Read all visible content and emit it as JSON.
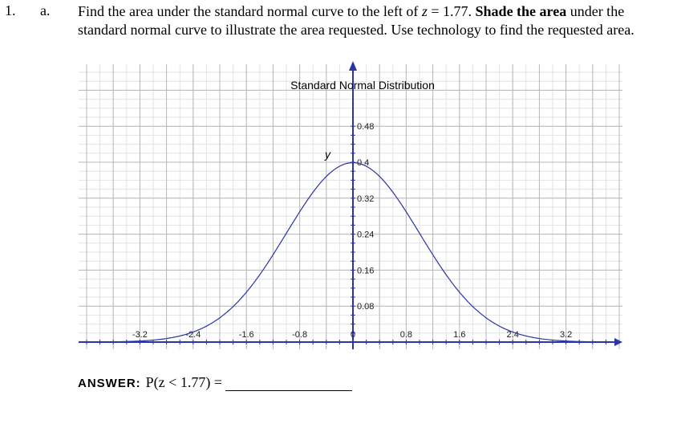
{
  "question": {
    "number": "1.",
    "part": "a.",
    "text_before_z": "Find the area under the standard normal curve to the left of ",
    "z_var": "z",
    "text_after_z": " = 1.77. ",
    "bold_text": "Shade the area",
    "text_rest": " under the standard normal curve to illustrate the area requested. Use technology to find the requested area."
  },
  "answer": {
    "label": "ANSWER:",
    "expression": "P(z < 1.77) ="
  },
  "chart_data": {
    "type": "line",
    "title": "Standard Normal Distribution",
    "ylabel": "y",
    "xlabel": "",
    "function": "standard normal pdf",
    "mean": 0,
    "sd": 1,
    "xlim": [
      -4.0,
      4.0
    ],
    "ylim": [
      0,
      0.5
    ],
    "x_ticks": [
      -3.2,
      -2.4,
      -1.6,
      -0.8,
      0,
      0.8,
      1.6,
      2.4,
      3.2
    ],
    "x_tick_labels": [
      "-3.2",
      "-2.4",
      "-1.6",
      "-0.8",
      "0",
      "0.8",
      "1.6",
      "2.4",
      "3.2"
    ],
    "y_ticks": [
      0.08,
      0.16,
      0.24,
      0.32,
      0.4,
      0.48
    ],
    "y_tick_labels": [
      "0.08",
      "0.16",
      "0.24",
      "0.32",
      "0.4",
      "0.48"
    ],
    "series": [
      {
        "x": [
          -3.6,
          -3.2,
          -2.8,
          -2.4,
          -2.0,
          -1.6,
          -1.2,
          -0.8,
          -0.4,
          0,
          0.4,
          0.8,
          1.2,
          1.6,
          2.0,
          2.4,
          2.8,
          3.2,
          3.6
        ],
        "y": [
          0.001,
          0.002,
          0.008,
          0.022,
          0.054,
          0.111,
          0.194,
          0.29,
          0.368,
          0.399,
          0.368,
          0.29,
          0.194,
          0.111,
          0.054,
          0.022,
          0.008,
          0.002,
          0.001
        ]
      }
    ],
    "grid": true,
    "colors": {
      "curve": "#2b34a8",
      "axis": "#2b34a8",
      "grid": "#b8b8b8"
    }
  }
}
